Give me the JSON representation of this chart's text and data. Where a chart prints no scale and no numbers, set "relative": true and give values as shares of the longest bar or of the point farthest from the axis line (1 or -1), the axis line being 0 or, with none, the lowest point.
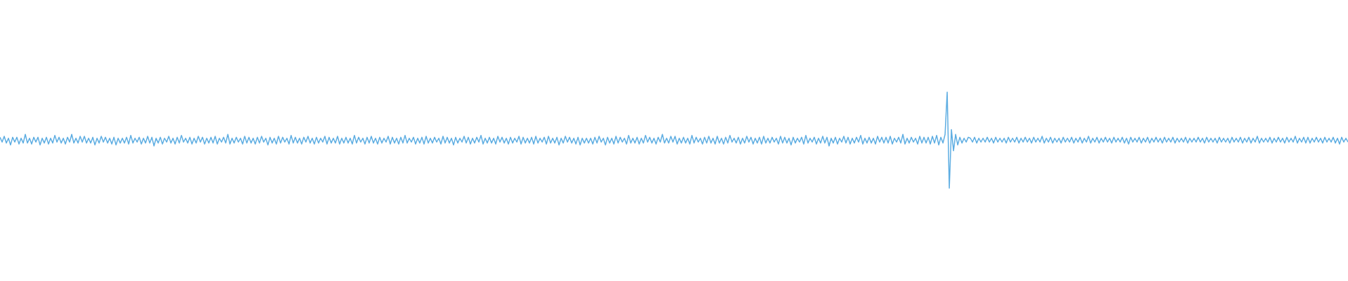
{
  "chart_data": {
    "type": "line",
    "relative": true,
    "categories": [
      null,
      null,
      null,
      null,
      null,
      null,
      null,
      null,
      null,
      null,
      null,
      null,
      null,
      null,
      null,
      null,
      null,
      null,
      null,
      null,
      null,
      null,
      null,
      null,
      null,
      null,
      null,
      null,
      null,
      null,
      null,
      null,
      null,
      null,
      null,
      null,
      null,
      null,
      null,
      null,
      null,
      null,
      null,
      null,
      null,
      null,
      null,
      null,
      null,
      null,
      null,
      null,
      null,
      null,
      null,
      null,
      null,
      null,
      null,
      null,
      null,
      null,
      null,
      null,
      null,
      null,
      null,
      null,
      null,
      null,
      null,
      null,
      null,
      null,
      null,
      null,
      null,
      null,
      null,
      null,
      null,
      null,
      null,
      null,
      null,
      null,
      null,
      null,
      null,
      null,
      null,
      null,
      null,
      null,
      null,
      null,
      null,
      null,
      null,
      null,
      null,
      null,
      null,
      null,
      null,
      null,
      null,
      null,
      null,
      null,
      null,
      null,
      null,
      null,
      null,
      null,
      null,
      null,
      null,
      null,
      null,
      null,
      null,
      null,
      null,
      null,
      null,
      null,
      null,
      null,
      null,
      null,
      null,
      null,
      null,
      null,
      null,
      null,
      null,
      null,
      null,
      null,
      null,
      null,
      null,
      null,
      null,
      null,
      null,
      null,
      null,
      null,
      null,
      null,
      null,
      null,
      null,
      null,
      null,
      null,
      null,
      null,
      null,
      null,
      null,
      null,
      null,
      null,
      null,
      null,
      null,
      null,
      null,
      null,
      null,
      null,
      null,
      null,
      null,
      null,
      null,
      null,
      null,
      null,
      null,
      null,
      null,
      null,
      null,
      null,
      null,
      null,
      null,
      null,
      null,
      null,
      null,
      null,
      null,
      null,
      null,
      null,
      null,
      null,
      null,
      null,
      null,
      null,
      null,
      null,
      null,
      null,
      null,
      null,
      null,
      null,
      null,
      null,
      null,
      null,
      null,
      null,
      null,
      null,
      null,
      null,
      null,
      null,
      null,
      null,
      null,
      null,
      null,
      null,
      null,
      null,
      null,
      null,
      null,
      null,
      null,
      null,
      null,
      null,
      null,
      null,
      null,
      null,
      null,
      null,
      null,
      null,
      null,
      null,
      null,
      null,
      null,
      null,
      null,
      null,
      null,
      null,
      null,
      null,
      null,
      null,
      null,
      null,
      null,
      null,
      null,
      null,
      null,
      null,
      null,
      null,
      null,
      null,
      null,
      null,
      null,
      null,
      null,
      null,
      null,
      null,
      null,
      null,
      null,
      null,
      null,
      null,
      null,
      null,
      null,
      null,
      null,
      null,
      null,
      null,
      null,
      null,
      null,
      null,
      null,
      null,
      null,
      null,
      null,
      null,
      null,
      null,
      null,
      null,
      null,
      null,
      null,
      null,
      null,
      null,
      null,
      null,
      null,
      null,
      null,
      null,
      null,
      null,
      null,
      null,
      null,
      null,
      null,
      null,
      null,
      null,
      null,
      null,
      null,
      null,
      null,
      null,
      null,
      null,
      null,
      null,
      null,
      null,
      null,
      null,
      null,
      null,
      null,
      null,
      null,
      null,
      null,
      null,
      null,
      null,
      null,
      null,
      null,
      null,
      null,
      null,
      null,
      null,
      null,
      null,
      null,
      null,
      null,
      null,
      null,
      null,
      null,
      null,
      null,
      null,
      null,
      null,
      null,
      null,
      null,
      null,
      null,
      null,
      null,
      null,
      null,
      null,
      null,
      null,
      null,
      null,
      null,
      null,
      null,
      null,
      null,
      null,
      null,
      null,
      null,
      null,
      null,
      null,
      null,
      null,
      null,
      null,
      null,
      null,
      null,
      null,
      null,
      null,
      null,
      null,
      null,
      null,
      null,
      null,
      null,
      null,
      null,
      null,
      null,
      null,
      null,
      null,
      null,
      null,
      null,
      null,
      null,
      null,
      null,
      null,
      null,
      null,
      null,
      null,
      null,
      null,
      null,
      null,
      null,
      null,
      null,
      null,
      null,
      null,
      null,
      null,
      null,
      null,
      null,
      null,
      null,
      null,
      null,
      null,
      null,
      null,
      null,
      null,
      null,
      null,
      null,
      null,
      null,
      null,
      null,
      null,
      null,
      null,
      null,
      null,
      null,
      null,
      null,
      null,
      null,
      null,
      null,
      null,
      null,
      null,
      null,
      null,
      null,
      null,
      null,
      null,
      null,
      null,
      null,
      null,
      null,
      null,
      null,
      null,
      null,
      null,
      null,
      null,
      null,
      null,
      null,
      null,
      null,
      null,
      null,
      null,
      null,
      null,
      null,
      null,
      null,
      null,
      null,
      null,
      null,
      null,
      null,
      null,
      null,
      null,
      null,
      null,
      null,
      null,
      null,
      null,
      null,
      null,
      null,
      null,
      null,
      null,
      null,
      null,
      null,
      null,
      null,
      null,
      null,
      null,
      null,
      null,
      null,
      null,
      null,
      null,
      null,
      null,
      null,
      null,
      null,
      null,
      null,
      null,
      null,
      null,
      null,
      null,
      null,
      null,
      null,
      null,
      null,
      null,
      null,
      null,
      null,
      null,
      null,
      null,
      null,
      null,
      null,
      null,
      null,
      null,
      null,
      null,
      null,
      null,
      null,
      null,
      null,
      null,
      null,
      null,
      null,
      null,
      null,
      null,
      null,
      null,
      null,
      null,
      null,
      null,
      null,
      null,
      null,
      null,
      null,
      null,
      null,
      null,
      null,
      null,
      null,
      null,
      null,
      null,
      null,
      null,
      null,
      null,
      null,
      null,
      null,
      null,
      null,
      null,
      null,
      null,
      null,
      null,
      null,
      null,
      null,
      null,
      null,
      null
    ],
    "series": [
      {
        "color": "#5dade2",
        "values": [
          0.53,
          0.48,
          0.54,
          0.47,
          0.52,
          0.45,
          0.53,
          0.48,
          0.53,
          0.46,
          0.52,
          0.47,
          0.56,
          0.47,
          0.52,
          0.46,
          0.53,
          0.48,
          0.53,
          0.45,
          0.52,
          0.47,
          0.53,
          0.46,
          0.52,
          0.47,
          0.55,
          0.48,
          0.53,
          0.47,
          0.52,
          0.46,
          0.53,
          0.48,
          0.56,
          0.47,
          0.52,
          0.47,
          0.54,
          0.48,
          0.54,
          0.47,
          0.52,
          0.47,
          0.53,
          0.45,
          0.52,
          0.47,
          0.54,
          0.48,
          0.53,
          0.47,
          0.52,
          0.46,
          0.53,
          0.45,
          0.52,
          0.47,
          0.52,
          0.47,
          0.53,
          0.46,
          0.55,
          0.47,
          0.52,
          0.48,
          0.53,
          0.46,
          0.52,
          0.47,
          0.54,
          0.47,
          0.53,
          0.44,
          0.52,
          0.47,
          0.53,
          0.46,
          0.52,
          0.48,
          0.54,
          0.47,
          0.52,
          0.46,
          0.53,
          0.47,
          0.55,
          0.48,
          0.52,
          0.47,
          0.53,
          0.46,
          0.52,
          0.47,
          0.54,
          0.48,
          0.53,
          0.46,
          0.52,
          0.47,
          0.53,
          0.47,
          0.54,
          0.46,
          0.52,
          0.48,
          0.53,
          0.47,
          0.56,
          0.46,
          0.52,
          0.47,
          0.53,
          0.48,
          0.52,
          0.46,
          0.54,
          0.47,
          0.53,
          0.47,
          0.52,
          0.46,
          0.53,
          0.47,
          0.54,
          0.48,
          0.52,
          0.45,
          0.53,
          0.47,
          0.52,
          0.46,
          0.54,
          0.47,
          0.53,
          0.48,
          0.52,
          0.46,
          0.55,
          0.47,
          0.53,
          0.47,
          0.52,
          0.46,
          0.53,
          0.48,
          0.54,
          0.47,
          0.52,
          0.46,
          0.53,
          0.47,
          0.52,
          0.48,
          0.54,
          0.46,
          0.53,
          0.47,
          0.52,
          0.47,
          0.54,
          0.46,
          0.52,
          0.47,
          0.53,
          0.47,
          0.52,
          0.46,
          0.55,
          0.47,
          0.53,
          0.48,
          0.52,
          0.46,
          0.53,
          0.47,
          0.54,
          0.47,
          0.52,
          0.46,
          0.53,
          0.47,
          0.52,
          0.48,
          0.54,
          0.46,
          0.53,
          0.47,
          0.52,
          0.46,
          0.53,
          0.47,
          0.55,
          0.47,
          0.52,
          0.48,
          0.53,
          0.46,
          0.52,
          0.47,
          0.53,
          0.46,
          0.54,
          0.47,
          0.52,
          0.47,
          0.53,
          0.48,
          0.52,
          0.46,
          0.54,
          0.47,
          0.53,
          0.47,
          0.52,
          0.45,
          0.53,
          0.47,
          0.52,
          0.48,
          0.54,
          0.47,
          0.53,
          0.46,
          0.52,
          0.47,
          0.53,
          0.48,
          0.55,
          0.46,
          0.52,
          0.47,
          0.53,
          0.47,
          0.52,
          0.46,
          0.54,
          0.48,
          0.53,
          0.47,
          0.52,
          0.46,
          0.53,
          0.47,
          0.52,
          0.48,
          0.54,
          0.46,
          0.53,
          0.47,
          0.52,
          0.47,
          0.53,
          0.46,
          0.54,
          0.47,
          0.52,
          0.48,
          0.53,
          0.46,
          0.54,
          0.47,
          0.52,
          0.47,
          0.53,
          0.45,
          0.52,
          0.47,
          0.54,
          0.48,
          0.53,
          0.47,
          0.52,
          0.46,
          0.53,
          0.45,
          0.52,
          0.47,
          0.52,
          0.47,
          0.52,
          0.46,
          0.53,
          0.47,
          0.54,
          0.48,
          0.52,
          0.45,
          0.53,
          0.47,
          0.52,
          0.46,
          0.54,
          0.47,
          0.53,
          0.48,
          0.52,
          0.46,
          0.55,
          0.47,
          0.52,
          0.47,
          0.53,
          0.46,
          0.52,
          0.47,
          0.55,
          0.48,
          0.53,
          0.47,
          0.52,
          0.46,
          0.53,
          0.48,
          0.56,
          0.47,
          0.52,
          0.47,
          0.54,
          0.48,
          0.54,
          0.46,
          0.52,
          0.47,
          0.53,
          0.47,
          0.52,
          0.46,
          0.55,
          0.47,
          0.53,
          0.48,
          0.52,
          0.46,
          0.53,
          0.47,
          0.54,
          0.47,
          0.52,
          0.46,
          0.54,
          0.47,
          0.52,
          0.46,
          0.53,
          0.47,
          0.55,
          0.48,
          0.52,
          0.47,
          0.53,
          0.46,
          0.52,
          0.47,
          0.54,
          0.48,
          0.53,
          0.46,
          0.52,
          0.47,
          0.53,
          0.46,
          0.54,
          0.47,
          0.52,
          0.47,
          0.53,
          0.48,
          0.52,
          0.46,
          0.54,
          0.47,
          0.53,
          0.47,
          0.52,
          0.45,
          0.53,
          0.47,
          0.52,
          0.48,
          0.53,
          0.46,
          0.55,
          0.47,
          0.52,
          0.48,
          0.53,
          0.46,
          0.52,
          0.47,
          0.54,
          0.47,
          0.53,
          0.44,
          0.52,
          0.47,
          0.53,
          0.46,
          0.52,
          0.48,
          0.54,
          0.47,
          0.53,
          0.46,
          0.52,
          0.47,
          0.53,
          0.48,
          0.55,
          0.46,
          0.52,
          0.47,
          0.53,
          0.47,
          0.52,
          0.46,
          0.54,
          0.48,
          0.53,
          0.47,
          0.53,
          0.47,
          0.54,
          0.46,
          0.52,
          0.48,
          0.53,
          0.47,
          0.56,
          0.46,
          0.52,
          0.47,
          0.53,
          0.48,
          0.52,
          0.46,
          0.54,
          0.47,
          0.53,
          0.47,
          0.53,
          0.46,
          0.54,
          0.47,
          0.55,
          0.45,
          0.53,
          0.47,
          0.56,
          1.0,
          0.0,
          0.61,
          0.39,
          0.56,
          0.45,
          0.53,
          0.47,
          0.52,
          0.48,
          0.53,
          0.52,
          0.48,
          0.53,
          0.47,
          0.52,
          0.48,
          0.52,
          0.48,
          0.53,
          0.48,
          0.52,
          0.47,
          0.53,
          0.48,
          0.52,
          0.48,
          0.52,
          0.47,
          0.53,
          0.48,
          0.52,
          0.48,
          0.53,
          0.47,
          0.52,
          0.48,
          0.53,
          0.48,
          0.52,
          0.47,
          0.53,
          0.48,
          0.52,
          0.48,
          0.54,
          0.47,
          0.52,
          0.48,
          0.53,
          0.47,
          0.52,
          0.48,
          0.52,
          0.47,
          0.53,
          0.48,
          0.52,
          0.48,
          0.53,
          0.47,
          0.52,
          0.48,
          0.53,
          0.47,
          0.52,
          0.48,
          0.54,
          0.47,
          0.52,
          0.48,
          0.53,
          0.47,
          0.52,
          0.48,
          0.53,
          0.48,
          0.52,
          0.47,
          0.53,
          0.48,
          0.52,
          0.48,
          0.53,
          0.47,
          0.52,
          0.46,
          0.53,
          0.48,
          0.52,
          0.48,
          0.53,
          0.47,
          0.52,
          0.48,
          0.53,
          0.47,
          0.52,
          0.48,
          0.53,
          0.48,
          0.52,
          0.47,
          0.53,
          0.48,
          0.52,
          0.48,
          0.53,
          0.47,
          0.52,
          0.48,
          0.52,
          0.48,
          0.53,
          0.47,
          0.52,
          0.48,
          0.52,
          0.48,
          0.53,
          0.48,
          0.52,
          0.47,
          0.53,
          0.48,
          0.52,
          0.48,
          0.52,
          0.47,
          0.53,
          0.48,
          0.52,
          0.48,
          0.52,
          0.47,
          0.53,
          0.48,
          0.52,
          0.48,
          0.53,
          0.47,
          0.52,
          0.48,
          0.53,
          0.47,
          0.52,
          0.48,
          0.54,
          0.47,
          0.52,
          0.48,
          0.52,
          0.48,
          0.53,
          0.47,
          0.52,
          0.48,
          0.53,
          0.48,
          0.52,
          0.47,
          0.53,
          0.48,
          0.52,
          0.48,
          0.54,
          0.47,
          0.52,
          0.48,
          0.53,
          0.47,
          0.53,
          0.47,
          0.52,
          0.48,
          0.53,
          0.48,
          0.52,
          0.47,
          0.53,
          0.48,
          0.52,
          0.48,
          0.53,
          0.47,
          0.52,
          0.46,
          0.53,
          0.48,
          0.52,
          0.48
        ]
      }
    ]
  }
}
